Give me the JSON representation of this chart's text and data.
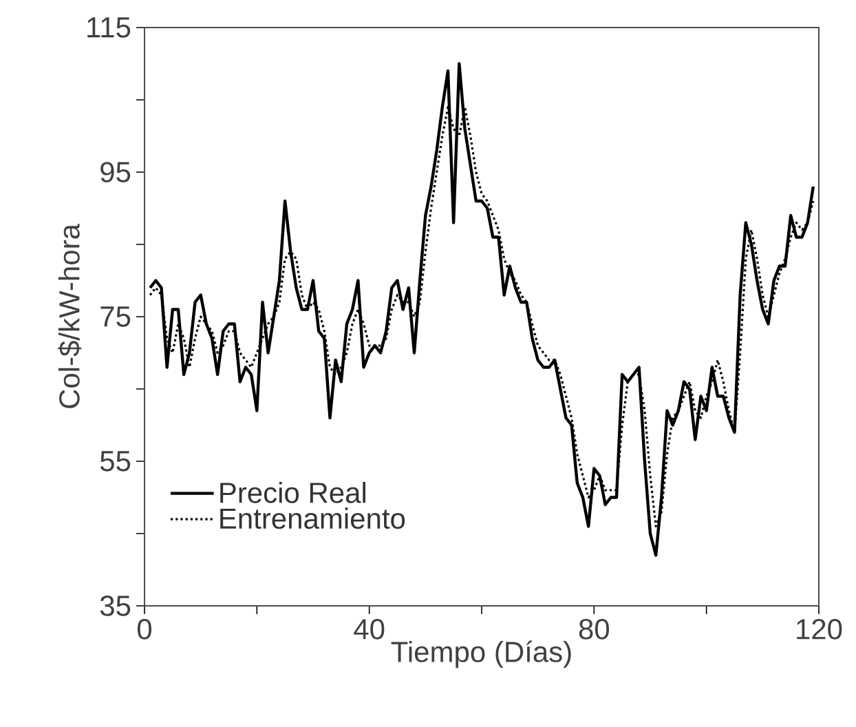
{
  "chart_data": {
    "type": "line",
    "xlabel": "Tiempo (Días)",
    "ylabel": "Col-$/kW-hora",
    "xlim": [
      0,
      120
    ],
    "xticks": [
      0,
      {
        "value": 20,
        "label": null
      },
      40,
      {
        "value": 60,
        "label": null
      },
      80,
      {
        "value": 100,
        "label": null
      },
      120
    ],
    "ylim": [
      35,
      115
    ],
    "yticks": [
      35,
      {
        "value": 45,
        "label": null
      },
      55,
      {
        "value": 65,
        "label": null
      },
      75,
      {
        "value": 85,
        "label": null
      },
      95,
      {
        "value": 105,
        "label": null
      },
      115
    ],
    "legend": "bottom left",
    "grid": false,
    "marker": "none",
    "x": [
      1,
      2,
      3,
      4,
      5,
      6,
      7,
      8,
      9,
      10,
      11,
      12,
      13,
      14,
      15,
      16,
      17,
      18,
      19,
      20,
      21,
      22,
      23,
      24,
      25,
      26,
      27,
      28,
      29,
      30,
      31,
      32,
      33,
      34,
      35,
      36,
      37,
      38,
      39,
      40,
      41,
      42,
      43,
      44,
      45,
      46,
      47,
      48,
      49,
      50,
      51,
      52,
      53,
      54,
      55,
      56,
      57,
      58,
      59,
      60,
      61,
      62,
      63,
      64,
      65,
      66,
      67,
      68,
      69,
      70,
      71,
      72,
      73,
      74,
      75,
      76,
      77,
      78,
      79,
      80,
      81,
      82,
      83,
      84,
      85,
      86,
      87,
      88,
      89,
      90,
      91,
      92,
      93,
      94,
      95,
      96,
      97,
      98,
      99,
      100,
      101,
      102,
      103,
      104,
      105,
      106,
      107,
      108,
      109,
      110,
      111,
      112,
      113,
      114,
      115,
      116,
      117,
      118,
      119
    ],
    "series": [
      {
        "name": "Precio Real",
        "color": "#000000",
        "line_style": "solid",
        "values": [
          79,
          80,
          79,
          68,
          76,
          76,
          67,
          70,
          77,
          78,
          74,
          72,
          67,
          73,
          74,
          74,
          66,
          68,
          67,
          62,
          77,
          70,
          75,
          80,
          91,
          84,
          79,
          76,
          76,
          80,
          73,
          72,
          61,
          69,
          66,
          74,
          76,
          80,
          68,
          70,
          71,
          70,
          73,
          79,
          80,
          76,
          79,
          70,
          80,
          89,
          93,
          98,
          104,
          109,
          88,
          110,
          101,
          96,
          91,
          91,
          90,
          86,
          86,
          78,
          82,
          79,
          77,
          77,
          72,
          69,
          68,
          68,
          69,
          65,
          61,
          60,
          52,
          50,
          46,
          54,
          53,
          49,
          50,
          50,
          67,
          66,
          67,
          68,
          55,
          45,
          42,
          50,
          62,
          60,
          62,
          66,
          65,
          58,
          64,
          62,
          68,
          64,
          64,
          61,
          59,
          78,
          88,
          85,
          80,
          76,
          74,
          80,
          82,
          82,
          89,
          86,
          86,
          88,
          93
        ]
      },
      {
        "name": "Entrenamiento",
        "color": "#000000",
        "line_style": "dotted",
        "values": [
          78,
          79,
          78,
          72,
          70,
          74,
          72,
          68,
          72,
          75,
          74,
          73,
          70,
          71,
          73,
          73,
          70,
          69,
          68,
          70,
          72,
          74,
          75,
          77,
          83,
          84,
          83,
          78,
          76,
          77,
          76,
          73,
          68,
          67,
          68,
          70,
          74,
          76,
          74,
          71,
          71,
          71,
          72,
          76,
          78,
          77,
          77,
          75,
          77,
          84,
          90,
          95,
          100,
          104,
          101,
          100,
          104,
          100,
          95,
          92,
          91,
          89,
          87,
          83,
          81,
          80,
          78,
          77,
          74,
          71,
          70,
          69,
          69,
          67,
          64,
          61,
          56,
          53,
          50,
          51,
          53,
          51,
          51,
          51,
          60,
          66,
          67,
          67,
          62,
          53,
          46,
          48,
          56,
          61,
          62,
          64,
          66,
          62,
          61,
          64,
          66,
          69,
          66,
          62,
          59,
          70,
          83,
          87,
          83,
          78,
          75,
          78,
          81,
          83,
          86,
          88,
          87,
          88,
          91
        ]
      }
    ]
  }
}
